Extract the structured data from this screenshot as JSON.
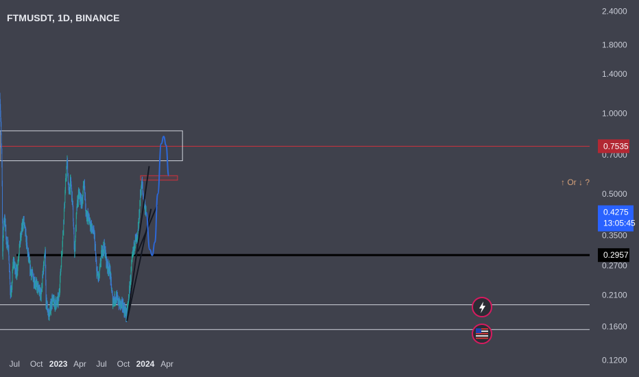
{
  "header": {
    "symbol_title": "FTMUSDT, 1D, BINANCE"
  },
  "chart_data": {
    "type": "candlestick",
    "title": "FTMUSDT, 1D, BINANCE",
    "y_scale": "log",
    "ylim": [
      0.105,
      2.6
    ],
    "y_ticks": [
      "2.4000",
      "1.8000",
      "1.4000",
      "1.0000",
      "0.7000",
      "0.5000",
      "0.3500",
      "0.2700",
      "0.2100",
      "0.1600",
      "0.1200"
    ],
    "x_ticks": [
      {
        "label": "Jul",
        "bold": false
      },
      {
        "label": "Oct",
        "bold": false
      },
      {
        "label": "2023",
        "bold": true
      },
      {
        "label": "Apr",
        "bold": false
      },
      {
        "label": "Jul",
        "bold": false
      },
      {
        "label": "Oct",
        "bold": false
      },
      {
        "label": "2024",
        "bold": true
      },
      {
        "label": "Apr",
        "bold": false
      }
    ],
    "price_path": [
      [
        "2022-05-01",
        1.15
      ],
      [
        "2022-05-04",
        0.95
      ],
      [
        "2022-05-08",
        0.7
      ],
      [
        "2022-05-10",
        0.55
      ],
      [
        "2022-05-12",
        0.3
      ],
      [
        "2022-05-15",
        0.36
      ],
      [
        "2022-05-20",
        0.42
      ],
      [
        "2022-05-28",
        0.33
      ],
      [
        "2022-06-05",
        0.32
      ],
      [
        "2022-06-13",
        0.22
      ],
      [
        "2022-06-18",
        0.21
      ],
      [
        "2022-06-25",
        0.28
      ],
      [
        "2022-07-02",
        0.27
      ],
      [
        "2022-07-10",
        0.25
      ],
      [
        "2022-07-20",
        0.31
      ],
      [
        "2022-07-30",
        0.36
      ],
      [
        "2022-08-08",
        0.4
      ],
      [
        "2022-08-15",
        0.36
      ],
      [
        "2022-08-28",
        0.29
      ],
      [
        "2022-09-06",
        0.26
      ],
      [
        "2022-09-20",
        0.24
      ],
      [
        "2022-10-05",
        0.225
      ],
      [
        "2022-10-20",
        0.21
      ],
      [
        "2022-11-01",
        0.27
      ],
      [
        "2022-11-07",
        0.3
      ],
      [
        "2022-11-10",
        0.2
      ],
      [
        "2022-11-22",
        0.175
      ],
      [
        "2022-12-05",
        0.2
      ],
      [
        "2022-12-20",
        0.195
      ],
      [
        "2023-01-02",
        0.2
      ],
      [
        "2023-01-12",
        0.27
      ],
      [
        "2023-01-22",
        0.38
      ],
      [
        "2023-02-02",
        0.58
      ],
      [
        "2023-02-07",
        0.66
      ],
      [
        "2023-02-14",
        0.5
      ],
      [
        "2023-02-22",
        0.56
      ],
      [
        "2023-03-02",
        0.45
      ],
      [
        "2023-03-10",
        0.3
      ],
      [
        "2023-03-20",
        0.45
      ],
      [
        "2023-03-28",
        0.5
      ],
      [
        "2023-04-10",
        0.46
      ],
      [
        "2023-04-19",
        0.56
      ],
      [
        "2023-04-26",
        0.43
      ],
      [
        "2023-05-10",
        0.4
      ],
      [
        "2023-05-22",
        0.37
      ],
      [
        "2023-06-01",
        0.35
      ],
      [
        "2023-06-10",
        0.26
      ],
      [
        "2023-06-20",
        0.24
      ],
      [
        "2023-07-01",
        0.3
      ],
      [
        "2023-07-12",
        0.32
      ],
      [
        "2023-07-25",
        0.27
      ],
      [
        "2023-08-05",
        0.26
      ],
      [
        "2023-08-17",
        0.2
      ],
      [
        "2023-09-01",
        0.205
      ],
      [
        "2023-09-15",
        0.195
      ],
      [
        "2023-10-01",
        0.19
      ],
      [
        "2023-10-15",
        0.175
      ],
      [
        "2023-10-25",
        0.21
      ],
      [
        "2023-11-01",
        0.25
      ],
      [
        "2023-11-10",
        0.3
      ],
      [
        "2023-11-20",
        0.34
      ],
      [
        "2023-11-28",
        0.33
      ],
      [
        "2023-12-05",
        0.4
      ],
      [
        "2023-12-13",
        0.52
      ],
      [
        "2023-12-18",
        0.55
      ],
      [
        "2023-12-24",
        0.48
      ],
      [
        "2023-12-31",
        0.45
      ],
      [
        "2024-01-04",
        0.4275
      ]
    ],
    "current_price_tag": {
      "price": "0.4275",
      "countdown": "13:05:45",
      "color": "#2962ff"
    },
    "level_tags": [
      {
        "price": "0.7535",
        "color": "#b22833"
      },
      {
        "price": "0.2957",
        "color": "#000000"
      }
    ],
    "horizontal_lines": [
      {
        "price": 0.7535,
        "color": "#d0323d"
      },
      {
        "price": 0.2957,
        "color": "#000000"
      },
      {
        "price": 0.193,
        "color": "#d1d4dc"
      },
      {
        "price": 0.156,
        "color": "#d1d4dc"
      }
    ],
    "rectangles": [
      {
        "price_top": 0.86,
        "price_bottom": 0.665,
        "from": "2022-05-01",
        "to": "2024-06-05",
        "color": "#d1d4dc"
      },
      {
        "price_top": 0.585,
        "price_bottom": 0.563,
        "from": "2023-12-12",
        "to": "2024-05-15",
        "color": "#d0323d"
      }
    ],
    "trend_lines": [
      {
        "from": [
          "2023-10-16",
          0.168
        ],
        "to": [
          "2024-01-17",
          0.635
        ]
      },
      {
        "from": [
          "2023-10-16",
          0.168
        ],
        "to": [
          "2024-01-25",
          0.44
        ]
      },
      {
        "from": [
          "2023-12-01",
          0.305
        ],
        "to": [
          "2024-02-20",
          0.455
        ]
      }
    ],
    "projection_path": [
      [
        "2024-01-04",
        0.4275
      ],
      [
        "2024-01-20",
        0.31
      ],
      [
        "2024-01-30",
        0.295
      ],
      [
        "2024-02-10",
        0.33
      ],
      [
        "2024-02-22",
        0.5
      ],
      [
        "2024-03-08",
        0.77
      ],
      [
        "2024-03-18",
        0.82
      ],
      [
        "2024-03-28",
        0.76
      ],
      [
        "2024-04-08",
        0.585
      ]
    ],
    "annotation": "↑ Or ↓ ?",
    "colors": {
      "up": "#26a69a",
      "down": "#3d7bd6",
      "projection": "#2d68d8",
      "trend": "#131722"
    },
    "event_icons": [
      "lightning-icon",
      "us-flag-icon"
    ]
  }
}
